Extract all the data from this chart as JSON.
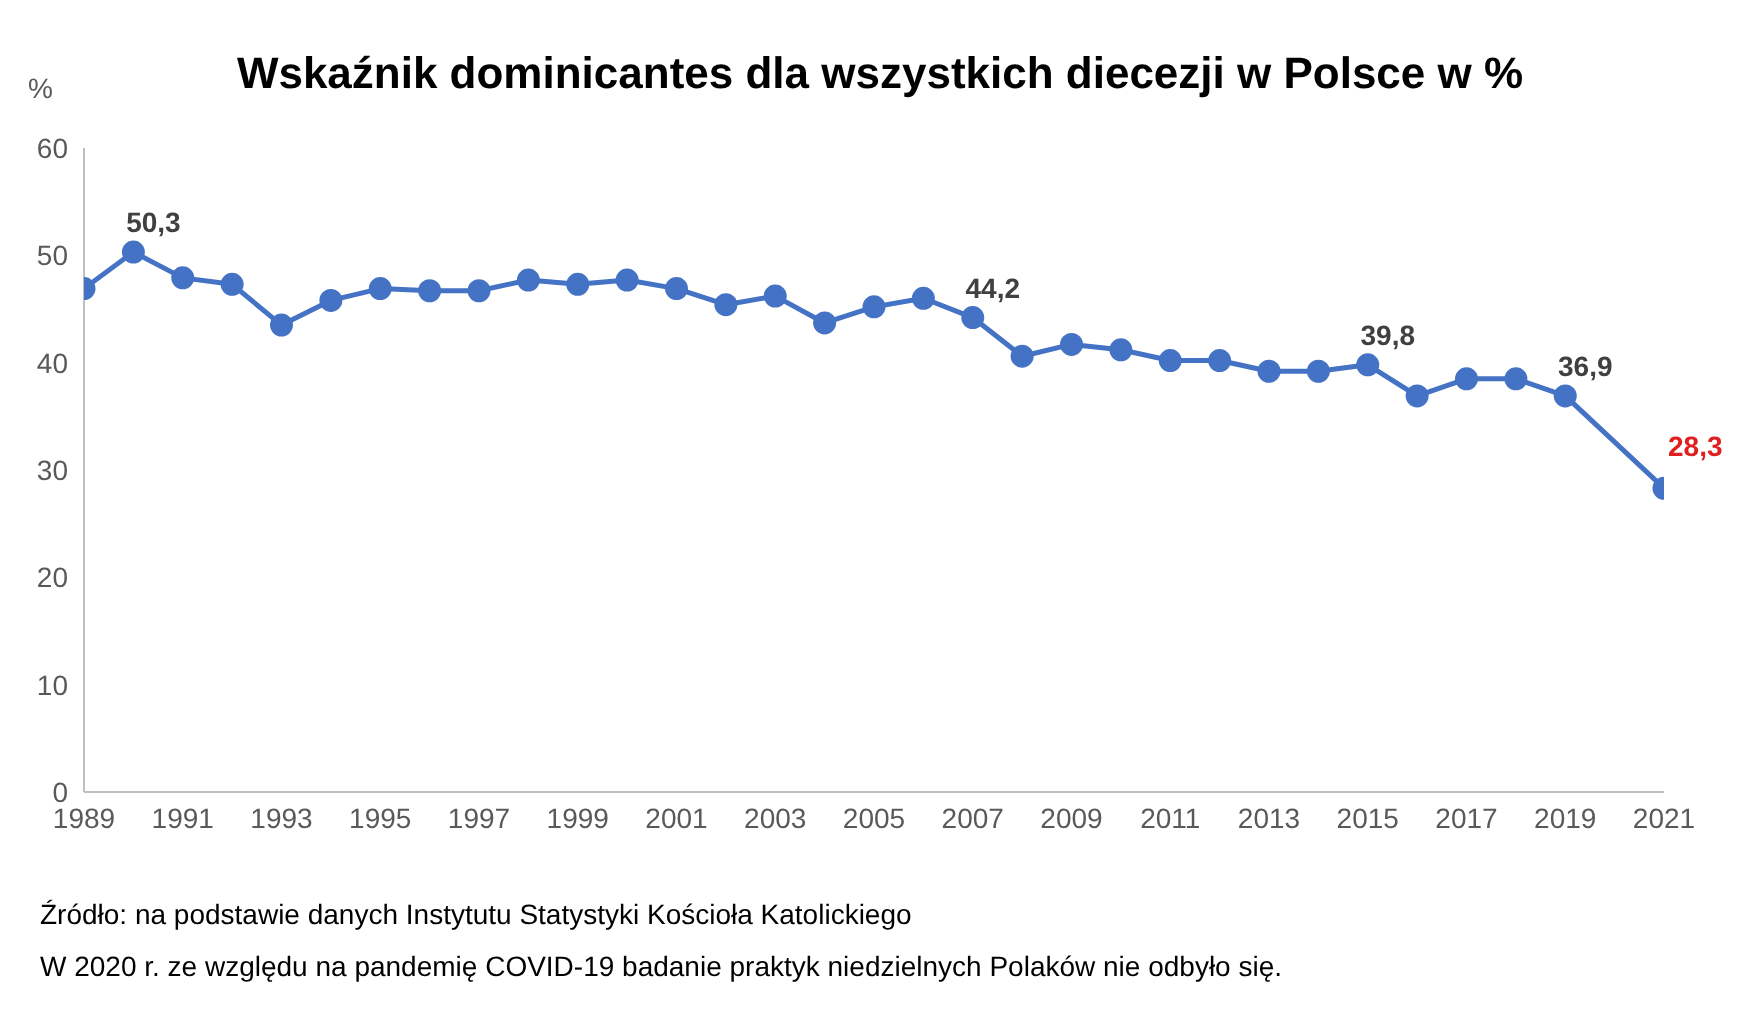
{
  "chart_data": {
    "type": "line",
    "title": "Wskaźnik dominicantes dla wszystkich diecezji w Polsce w %",
    "ylabel": "%",
    "x": [
      1989,
      1990,
      1991,
      1992,
      1993,
      1994,
      1995,
      1996,
      1997,
      1998,
      1999,
      2000,
      2001,
      2002,
      2003,
      2004,
      2005,
      2006,
      2007,
      2008,
      2009,
      2010,
      2011,
      2012,
      2013,
      2014,
      2015,
      2016,
      2017,
      2018,
      2019,
      2021
    ],
    "series": [
      {
        "color": "#4472c4",
        "values": [
          46.9,
          50.3,
          47.9,
          47.3,
          43.5,
          45.8,
          46.9,
          46.7,
          46.7,
          47.7,
          47.3,
          47.7,
          46.9,
          45.4,
          46.2,
          43.7,
          45.2,
          46.0,
          44.2,
          40.6,
          41.7,
          41.2,
          40.2,
          40.2,
          39.2,
          39.2,
          39.8,
          36.9,
          38.5,
          38.5,
          36.9,
          28.3
        ],
        "value_labels": [
          null,
          "50,3",
          null,
          null,
          null,
          null,
          null,
          null,
          null,
          null,
          null,
          null,
          null,
          null,
          null,
          null,
          null,
          null,
          "44,2",
          null,
          null,
          null,
          null,
          null,
          null,
          null,
          "39,8",
          null,
          null,
          null,
          "36,9",
          "28,3"
        ]
      }
    ],
    "xlim": [
      1989,
      2021
    ],
    "xticks": [
      1989,
      1991,
      1993,
      1995,
      1997,
      1999,
      2001,
      2003,
      2005,
      2007,
      2009,
      2011,
      2013,
      2015,
      2017,
      2019,
      2021
    ],
    "ylim": [
      0,
      60
    ],
    "yticks": [
      0,
      10,
      20,
      30,
      40,
      50,
      60
    ],
    "grid": false,
    "marker": "circle",
    "line_style": "solid",
    "legend": false,
    "annotations": [
      "Źródło: na podstawie danych Instytutu Statystyki Kościoła Katolickiego",
      "W 2020 r. ze względu na pandemię COVID-19 badanie praktyk niedzielnych Polaków nie odbyło się."
    ]
  }
}
